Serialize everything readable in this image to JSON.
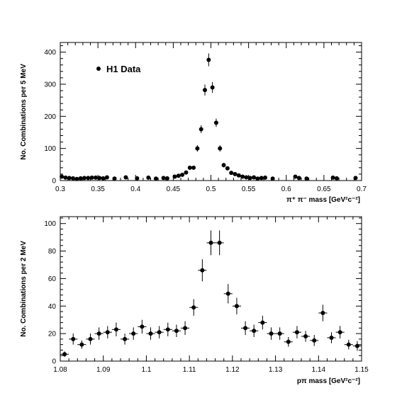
{
  "chart_data": [
    {
      "type": "scatter",
      "ylabel": "No. Combinations per 5 MeV",
      "xlabel": "π⁺ π⁻ mass  [GeV²c⁻²]",
      "xlim": [
        0.3,
        0.7
      ],
      "ylim": [
        0,
        430
      ],
      "xticks": [
        0.3,
        0.35,
        0.4,
        0.45,
        0.5,
        0.55,
        0.6,
        0.65,
        0.7
      ],
      "xtick_labels": [
        "0.3",
        "0.35",
        "0.4",
        "0.45",
        "0.5",
        "0.55",
        "0.6",
        "0.65",
        "0.7"
      ],
      "yticks": [
        0,
        100,
        200,
        300,
        400
      ],
      "ytick_labels": [
        "0",
        "100",
        "200",
        "300",
        "400"
      ],
      "grid": false,
      "legend": {
        "label": "H1 Data",
        "placement": "top-left"
      },
      "series": [
        {
          "name": "H1 Data",
          "x": [
            0.302,
            0.307,
            0.312,
            0.317,
            0.322,
            0.327,
            0.332,
            0.337,
            0.342,
            0.347,
            0.352,
            0.357,
            0.362,
            0.372,
            0.387,
            0.402,
            0.417,
            0.427,
            0.437,
            0.442,
            0.452,
            0.457,
            0.462,
            0.467,
            0.472,
            0.477,
            0.482,
            0.487,
            0.492,
            0.497,
            0.502,
            0.507,
            0.512,
            0.517,
            0.522,
            0.527,
            0.532,
            0.537,
            0.542,
            0.547,
            0.552,
            0.557,
            0.562,
            0.567,
            0.572,
            0.582,
            0.612,
            0.617,
            0.627,
            0.662,
            0.667,
            0.692
          ],
          "y": [
            12,
            9,
            8,
            7,
            5,
            7,
            8,
            8,
            9,
            9,
            8,
            7,
            10,
            6,
            10,
            7,
            9,
            6,
            8,
            7,
            12,
            15,
            18,
            25,
            40,
            40,
            100,
            160,
            282,
            376,
            290,
            180,
            100,
            48,
            38,
            24,
            20,
            16,
            12,
            10,
            8,
            10,
            6,
            8,
            9,
            6,
            12,
            8,
            6,
            9,
            7,
            8
          ],
          "yerr": [
            3,
            3,
            3,
            3,
            2,
            3,
            3,
            3,
            3,
            3,
            3,
            3,
            3,
            2,
            3,
            3,
            3,
            2,
            3,
            3,
            3,
            4,
            4,
            5,
            6,
            6,
            10,
            12,
            17,
            20,
            17,
            13,
            10,
            7,
            6,
            5,
            4,
            4,
            3,
            3,
            3,
            3,
            2,
            3,
            3,
            2,
            3,
            3,
            2,
            3,
            3,
            3
          ]
        }
      ]
    },
    {
      "type": "scatter",
      "ylabel": "No. Combinations per 2 MeV",
      "xlabel": "pπ mass  [GeV²c⁻²]",
      "xlim": [
        1.08,
        1.15
      ],
      "ylim": [
        0,
        105
      ],
      "xticks": [
        1.08,
        1.09,
        1.1,
        1.11,
        1.12,
        1.13,
        1.14,
        1.15
      ],
      "xtick_labels": [
        "1.08",
        "1.09",
        "1.1",
        "1.11",
        "1.12",
        "1.13",
        "1.14",
        "1.15"
      ],
      "yticks": [
        0,
        20,
        40,
        60,
        80,
        100
      ],
      "ytick_labels": [
        "0",
        "20",
        "40",
        "60",
        "80",
        "100"
      ],
      "grid": false,
      "x_halfwidth": 0.001,
      "series": [
        {
          "name": "",
          "x": [
            1.081,
            1.083,
            1.085,
            1.087,
            1.089,
            1.091,
            1.093,
            1.095,
            1.097,
            1.099,
            1.101,
            1.103,
            1.105,
            1.107,
            1.109,
            1.111,
            1.113,
            1.115,
            1.117,
            1.119,
            1.121,
            1.123,
            1.125,
            1.127,
            1.129,
            1.131,
            1.133,
            1.135,
            1.137,
            1.139,
            1.141,
            1.143,
            1.145,
            1.147,
            1.149
          ],
          "y": [
            5,
            16,
            12,
            16,
            20,
            21,
            23,
            16,
            20,
            25,
            20,
            21,
            23,
            22,
            24,
            39,
            66,
            86,
            86,
            49,
            40,
            24,
            22,
            28,
            20,
            20,
            14,
            21,
            18,
            15,
            35,
            17,
            21,
            12,
            11
          ],
          "yerr": [
            2,
            4,
            3,
            4,
            4.5,
            4.5,
            5,
            4,
            4.5,
            5,
            4.5,
            4.5,
            5,
            4.5,
            5,
            6,
            8,
            9,
            9,
            7,
            6,
            5,
            4.5,
            5,
            4.5,
            4.5,
            3.5,
            4.5,
            4,
            4,
            6,
            4,
            4.5,
            3.5,
            3.5
          ]
        }
      ]
    }
  ]
}
